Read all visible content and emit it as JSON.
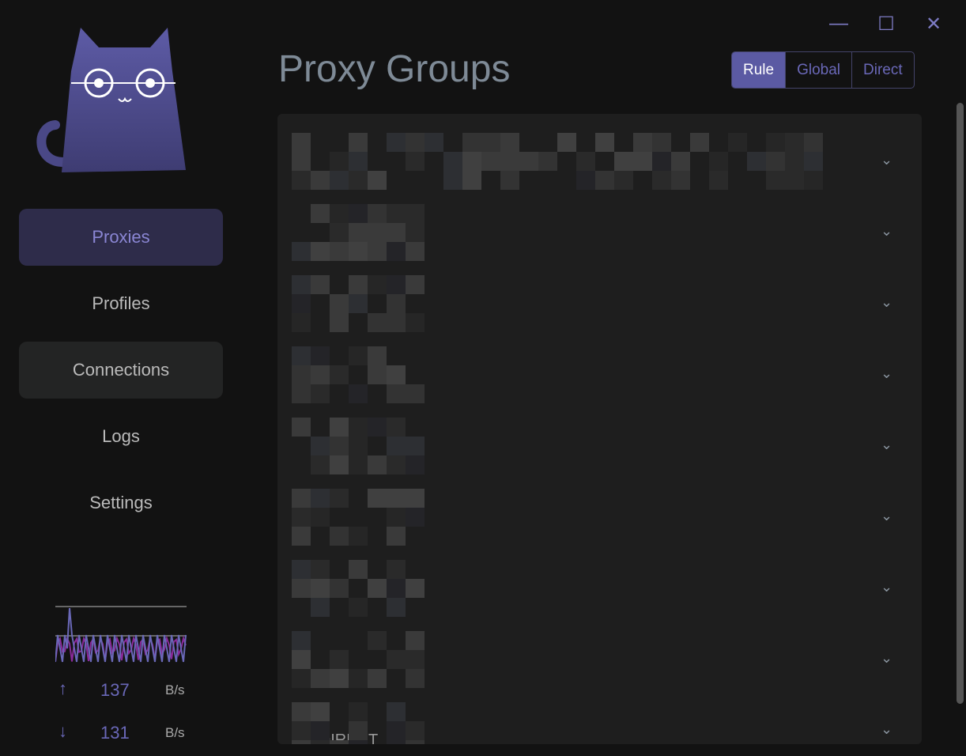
{
  "window": {
    "minimize_icon": "minimize-icon",
    "maximize_icon": "maximize-icon",
    "close_icon": "close-icon"
  },
  "sidebar": {
    "items": [
      {
        "label": "Proxies",
        "active": true
      },
      {
        "label": "Profiles"
      },
      {
        "label": "Connections"
      },
      {
        "label": "Logs"
      },
      {
        "label": "Settings"
      }
    ]
  },
  "traffic": {
    "upload": {
      "value": "137",
      "unit": "B/s"
    },
    "download": {
      "value": "131",
      "unit": "B/s"
    },
    "colors": {
      "upload": "#6a68b8",
      "download": "#8a2a9a"
    }
  },
  "header": {
    "title": "Proxy Groups",
    "modes": [
      {
        "label": "Rule",
        "selected": true
      },
      {
        "label": "Global"
      },
      {
        "label": "Direct"
      }
    ]
  },
  "groups": {
    "count": 9,
    "last_selected": "DIRECT"
  },
  "colors": {
    "accent": "#5b5aa3"
  }
}
